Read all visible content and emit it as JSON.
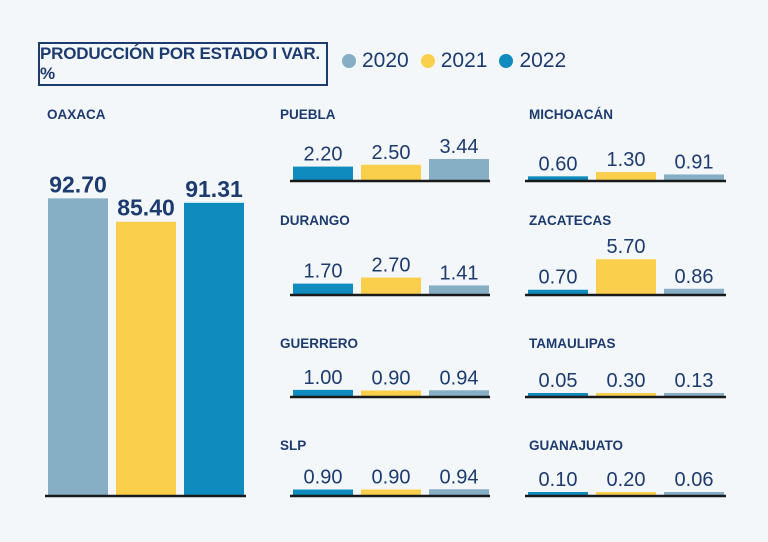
{
  "title": "PRODUCCIÓN POR ESTADO I VAR. %",
  "legend": [
    {
      "label": "2020",
      "color": "#86aec4"
    },
    {
      "label": "2021",
      "color": "#f9cf4c"
    },
    {
      "label": "2022",
      "color": "#0f8bbd"
    }
  ],
  "chart_data": [
    {
      "type": "bar",
      "title": "OAXACA",
      "categories": [
        "2020",
        "2021",
        "2022"
      ],
      "values": [
        92.7,
        85.4,
        91.31
      ],
      "labels": [
        "92.70",
        "85.40",
        "91.31"
      ]
    },
    {
      "type": "bar",
      "title": "PUEBLA",
      "categories": [
        "2022",
        "2021",
        "2020"
      ],
      "values": [
        2.2,
        2.5,
        3.44
      ],
      "labels": [
        "2.20",
        "2.50",
        "3.44"
      ]
    },
    {
      "type": "bar",
      "title": "DURANGO",
      "categories": [
        "2022",
        "2021",
        "2020"
      ],
      "values": [
        1.7,
        2.7,
        1.41
      ],
      "labels": [
        "1.70",
        "2.70",
        "1.41"
      ]
    },
    {
      "type": "bar",
      "title": "GUERRERO",
      "categories": [
        "2022",
        "2021",
        "2020"
      ],
      "values": [
        1.0,
        0.9,
        0.94
      ],
      "labels": [
        "1.00",
        "0.90",
        "0.94"
      ]
    },
    {
      "type": "bar",
      "title": "SLP",
      "categories": [
        "2022",
        "2021",
        "2020"
      ],
      "values": [
        0.9,
        0.9,
        0.94
      ],
      "labels": [
        "0.90",
        "0.90",
        "0.94"
      ]
    },
    {
      "type": "bar",
      "title": "MICHOACÁN",
      "categories": [
        "2022",
        "2021",
        "2020"
      ],
      "values": [
        0.6,
        1.3,
        0.91
      ],
      "labels": [
        "0.60",
        "1.30",
        "0.91"
      ]
    },
    {
      "type": "bar",
      "title": "ZACATECAS",
      "categories": [
        "2022",
        "2021",
        "2020"
      ],
      "values": [
        0.7,
        5.7,
        0.86
      ],
      "labels": [
        "0.70",
        "5.70",
        "0.86"
      ]
    },
    {
      "type": "bar",
      "title": "TAMAULIPAS",
      "categories": [
        "2022",
        "2021",
        "2020"
      ],
      "values": [
        0.05,
        0.3,
        0.13
      ],
      "labels": [
        "0.05",
        "0.30",
        "0.13"
      ]
    },
    {
      "type": "bar",
      "title": "GUANAJUATO",
      "categories": [
        "2022",
        "2021",
        "2020"
      ],
      "values": [
        0.1,
        0.2,
        0.06
      ],
      "labels": [
        "0.10",
        "0.20",
        "0.06"
      ]
    }
  ]
}
